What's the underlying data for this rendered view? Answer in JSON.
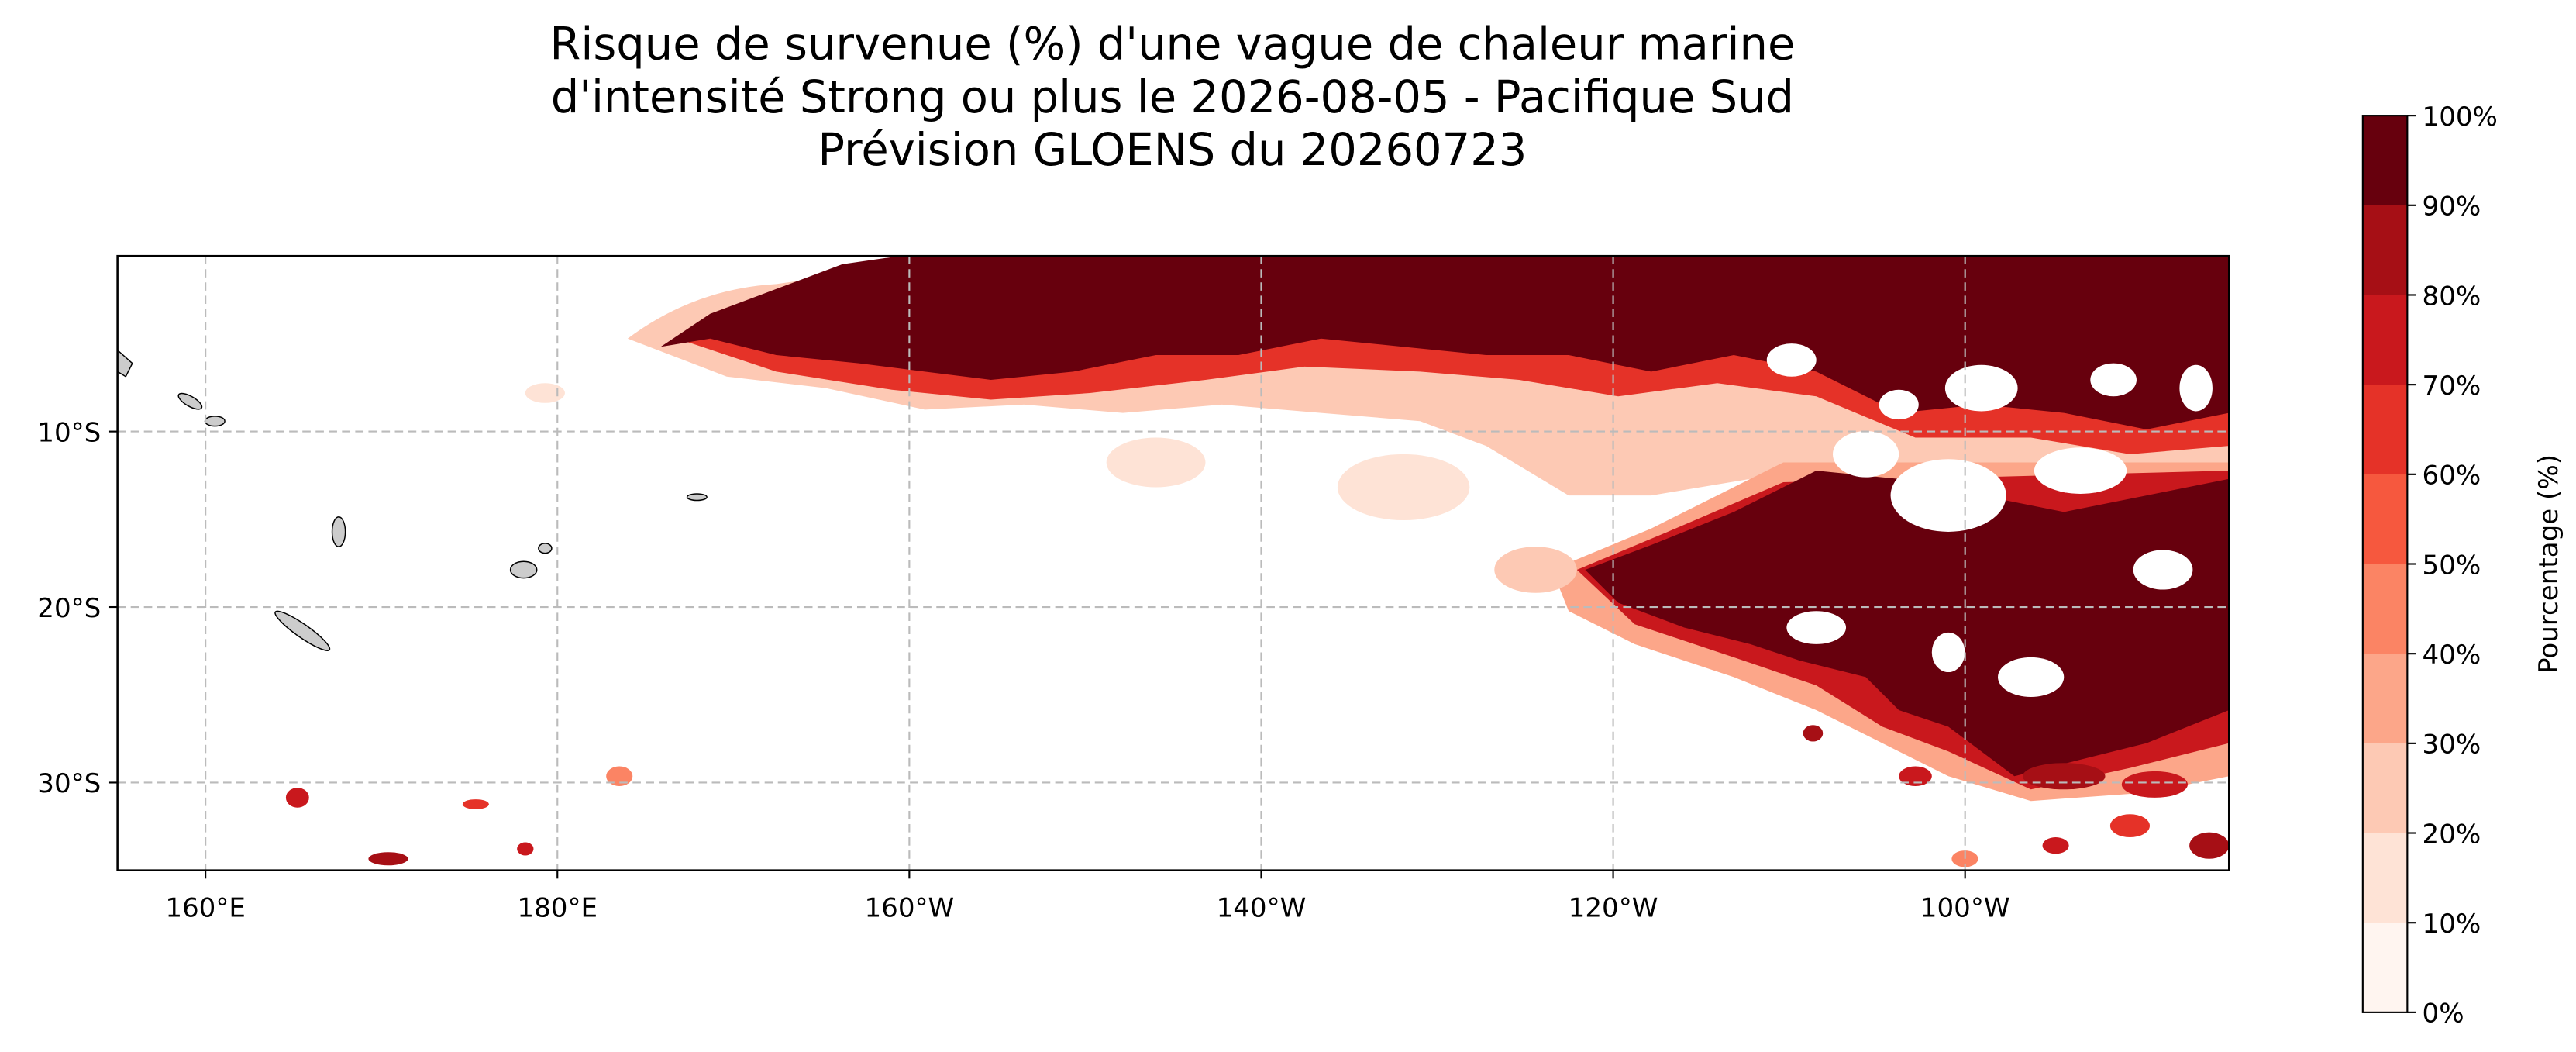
{
  "chart_data": {
    "type": "map",
    "title": [
      "Risque de survenue (%) d'une vague de chaleur marine",
      "d'intensité Strong ou plus le 2026-08-05 - Pacifique Sud",
      "Prévision GLOENS du 20260723"
    ],
    "xlim": [
      155,
      275
    ],
    "xticks": [
      {
        "value": 160,
        "label": "160°E"
      },
      {
        "value": 180,
        "label": "180°E"
      },
      {
        "value": 200,
        "label": "160°W"
      },
      {
        "value": 220,
        "label": "140°W"
      },
      {
        "value": 240,
        "label": "120°W"
      },
      {
        "value": 260,
        "label": "100°W"
      }
    ],
    "ylim": [
      -35,
      0
    ],
    "yticks": [
      {
        "value": -10,
        "label": "10°S"
      },
      {
        "value": -20,
        "label": "20°S"
      },
      {
        "value": -30,
        "label": "30°S"
      }
    ],
    "grid": true,
    "colorbar": {
      "label": "Pourcentage (%)",
      "ticks": [
        {
          "value": 0,
          "label": "0%"
        },
        {
          "value": 10,
          "label": "10%"
        },
        {
          "value": 20,
          "label": "20%"
        },
        {
          "value": 30,
          "label": "30%"
        },
        {
          "value": 40,
          "label": "40%"
        },
        {
          "value": 50,
          "label": "50%"
        },
        {
          "value": 60,
          "label": "60%"
        },
        {
          "value": 70,
          "label": "70%"
        },
        {
          "value": 80,
          "label": "80%"
        },
        {
          "value": 90,
          "label": "90%"
        },
        {
          "value": 100,
          "label": "100%"
        }
      ],
      "colors": [
        "#fff5f0",
        "#fee3d6",
        "#fdc9b4",
        "#fca689",
        "#fb8464",
        "#f6583e",
        "#e53228",
        "#c9181d",
        "#a60f15",
        "#67000d"
      ]
    }
  }
}
